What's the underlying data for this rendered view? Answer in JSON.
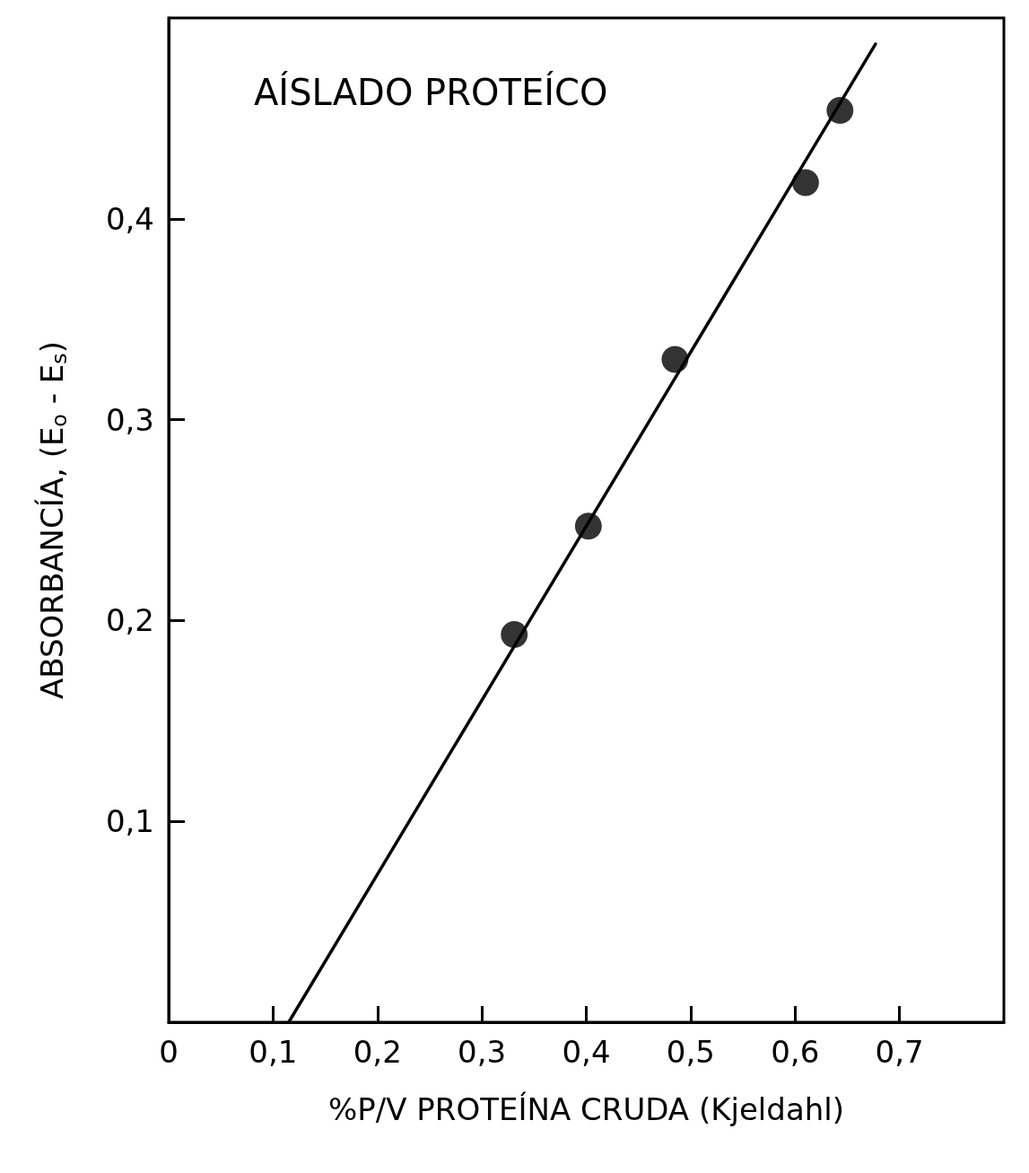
{
  "chart_data": {
    "type": "scatter",
    "title": "AÍSLADO PROTEÍCO",
    "xlabel": "%P/V PROTEÍNA CRUDA (Kjeldahl)",
    "ylabel": "ABSORBANCÍA, (E$_{o}$ - E$_{s}$)",
    "xlim": [
      0,
      0.8
    ],
    "ylim": [
      0,
      0.5
    ],
    "xticks": [
      0,
      {
        "value": 0.1,
        "label": "0,1"
      },
      {
        "value": 0.2,
        "label": "0,2"
      },
      {
        "value": 0.3,
        "label": "0,3"
      },
      {
        "value": 0.4,
        "label": "0,4"
      },
      {
        "value": 0.5,
        "label": "0,5"
      },
      {
        "value": 0.6,
        "label": "0,6"
      },
      {
        "value": 0.7,
        "label": "0,7"
      }
    ],
    "yticks": [
      {
        "value": 0.1,
        "label": "0,1"
      },
      {
        "value": 0.2,
        "label": "0,2"
      },
      {
        "value": 0.3,
        "label": "0,3"
      },
      {
        "value": 0.4,
        "label": "0,4"
      }
    ],
    "grid": false,
    "series": [
      {
        "color": "#000000",
        "marker": "circle",
        "x": [
          0.331,
          0.402,
          0.485,
          0.61,
          0.643
        ],
        "values": [
          0.193,
          0.247,
          0.33,
          0.418,
          0.454
        ]
      },
      {
        "type": "line",
        "color": "#000000",
        "marker": "none",
        "line_style": "solid",
        "x": [
          0.115,
          0.677
        ],
        "values": [
          0,
          0.487
        ]
      }
    ]
  }
}
